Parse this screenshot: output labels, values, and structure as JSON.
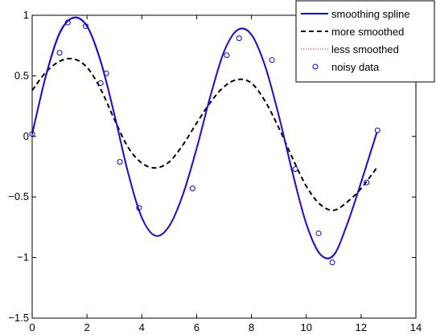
{
  "chart_data": {
    "type": "line",
    "title": "",
    "xlabel": "",
    "ylabel": "",
    "xlim": [
      0,
      14
    ],
    "ylim": [
      -1.5,
      1
    ],
    "grid": false,
    "legend_position": "top-right",
    "x_ticks": [
      0,
      2,
      4,
      6,
      8,
      10,
      12,
      14
    ],
    "y_ticks": [
      -1.5,
      -1,
      -0.5,
      0,
      0.5,
      1
    ],
    "x_tick_labels": [
      "0",
      "2",
      "4",
      "6",
      "8",
      "10",
      "12",
      "14"
    ],
    "y_tick_labels": [
      "−1.5",
      "−1",
      "−0.5",
      "0",
      "0.5",
      "1"
    ],
    "series": [
      {
        "name": "smoothing spline",
        "style": "solid",
        "color": "#0000ff",
        "x": [
          0.0,
          0.5,
          1.0,
          1.5,
          2.0,
          2.5,
          3.0,
          3.5,
          4.0,
          4.5,
          5.0,
          5.5,
          6.0,
          6.5,
          7.0,
          7.5,
          8.0,
          8.5,
          9.0,
          9.5,
          10.0,
          10.5,
          11.0,
          11.5,
          12.0,
          12.57
        ],
        "y": [
          0.02,
          0.5,
          0.85,
          0.98,
          0.91,
          0.62,
          0.18,
          -0.3,
          -0.67,
          -0.82,
          -0.74,
          -0.48,
          -0.1,
          0.33,
          0.7,
          0.88,
          0.84,
          0.58,
          0.17,
          -0.3,
          -0.72,
          -0.97,
          -0.98,
          -0.72,
          -0.38,
          0.03
        ]
      },
      {
        "name": "more smoothed",
        "style": "dashed",
        "color": "#000000",
        "x": [
          0.0,
          0.5,
          1.0,
          1.5,
          2.0,
          2.5,
          3.0,
          3.5,
          4.0,
          4.5,
          5.0,
          5.5,
          6.0,
          6.5,
          7.0,
          7.5,
          8.0,
          8.5,
          9.0,
          9.5,
          10.0,
          10.5,
          11.0,
          11.5,
          12.0,
          12.57
        ],
        "y": [
          0.38,
          0.53,
          0.62,
          0.64,
          0.57,
          0.39,
          0.14,
          -0.09,
          -0.22,
          -0.26,
          -0.21,
          -0.07,
          0.11,
          0.28,
          0.41,
          0.47,
          0.44,
          0.29,
          0.07,
          -0.18,
          -0.41,
          -0.56,
          -0.61,
          -0.54,
          -0.43,
          -0.26
        ]
      },
      {
        "name": "less smoothed",
        "style": "dotted",
        "color": "#ff0000",
        "x": [
          0.0,
          0.5,
          1.0,
          1.5,
          2.0,
          2.5,
          3.0,
          3.5,
          4.0,
          4.5,
          5.0,
          5.5,
          6.0,
          6.5,
          7.0,
          7.5,
          8.0,
          8.5,
          9.0,
          9.5,
          10.0,
          10.5,
          11.0,
          11.5,
          12.0,
          12.57
        ],
        "y": [
          0.02,
          0.52,
          0.87,
          0.97,
          0.9,
          0.6,
          0.17,
          -0.3,
          -0.67,
          -0.82,
          -0.74,
          -0.48,
          -0.1,
          0.33,
          0.7,
          0.88,
          0.84,
          0.58,
          0.17,
          -0.3,
          -0.72,
          -0.97,
          -0.99,
          -0.72,
          -0.38,
          0.03
        ]
      },
      {
        "name": "noisy data",
        "style": "markers",
        "color": "#0000ff",
        "x": [
          0.0,
          1.0,
          1.3,
          1.95,
          2.5,
          2.7,
          3.2,
          3.9,
          5.85,
          7.1,
          7.55,
          8.75,
          9.6,
          10.45,
          10.95,
          12.2,
          12.6
        ],
        "y": [
          0.02,
          0.69,
          0.94,
          0.91,
          0.44,
          0.52,
          -0.21,
          -0.59,
          -0.43,
          0.67,
          0.81,
          0.63,
          -0.27,
          -0.8,
          -1.04,
          -0.38,
          0.05
        ]
      }
    ]
  }
}
